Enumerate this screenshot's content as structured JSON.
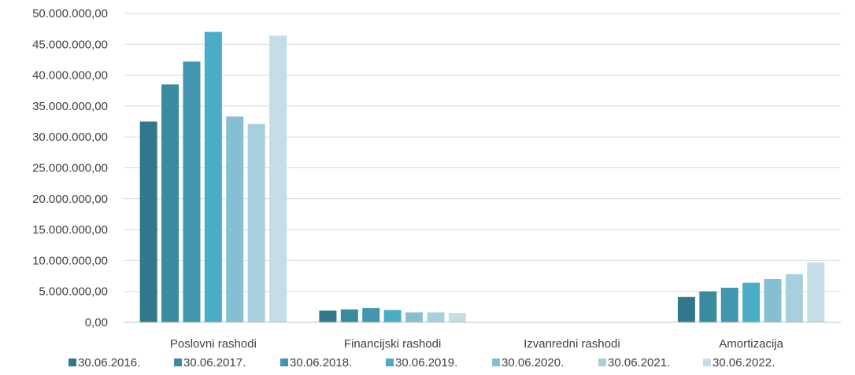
{
  "chart_data": {
    "type": "bar",
    "title": "",
    "xlabel": "",
    "ylabel": "",
    "ylim": [
      0,
      50000000
    ],
    "y_ticks": [
      0,
      5000000,
      10000000,
      15000000,
      20000000,
      25000000,
      30000000,
      35000000,
      40000000,
      45000000,
      50000000
    ],
    "y_tick_labels": [
      "0,00",
      "5.000.000,00",
      "10.000.000,00",
      "15.000.000,00",
      "20.000.000,00",
      "25.000.000,00",
      "30.000.000,00",
      "35.000.000,00",
      "40.000.000,00",
      "45.000.000,00",
      "50.000.000,00"
    ],
    "grid": true,
    "legend_position": "bottom",
    "categories": [
      "Poslovni rashodi",
      "Financijski rashodi",
      "Izvanredni rashodi",
      "Amortizacija"
    ],
    "series": [
      {
        "name": "30.06.2016.",
        "color": "#31788a",
        "values": [
          32500000,
          1900000,
          0,
          4100000
        ]
      },
      {
        "name": "30.06.2017.",
        "color": "#3a8aa0",
        "values": [
          38500000,
          2100000,
          0,
          5000000
        ]
      },
      {
        "name": "30.06.2018.",
        "color": "#4296b0",
        "values": [
          42200000,
          2300000,
          0,
          5600000
        ]
      },
      {
        "name": "30.06.2019.",
        "color": "#4bacc6",
        "values": [
          47000000,
          2000000,
          0,
          6400000
        ]
      },
      {
        "name": "30.06.2020.",
        "color": "#86bfd1",
        "values": [
          33300000,
          1600000,
          0,
          7000000
        ]
      },
      {
        "name": "30.06.2021.",
        "color": "#a8cfdc",
        "values": [
          32100000,
          1600000,
          0,
          7800000
        ]
      },
      {
        "name": "30.06.2022.",
        "color": "#c4dde6",
        "values": [
          46400000,
          1500000,
          0,
          9700000
        ]
      }
    ]
  }
}
